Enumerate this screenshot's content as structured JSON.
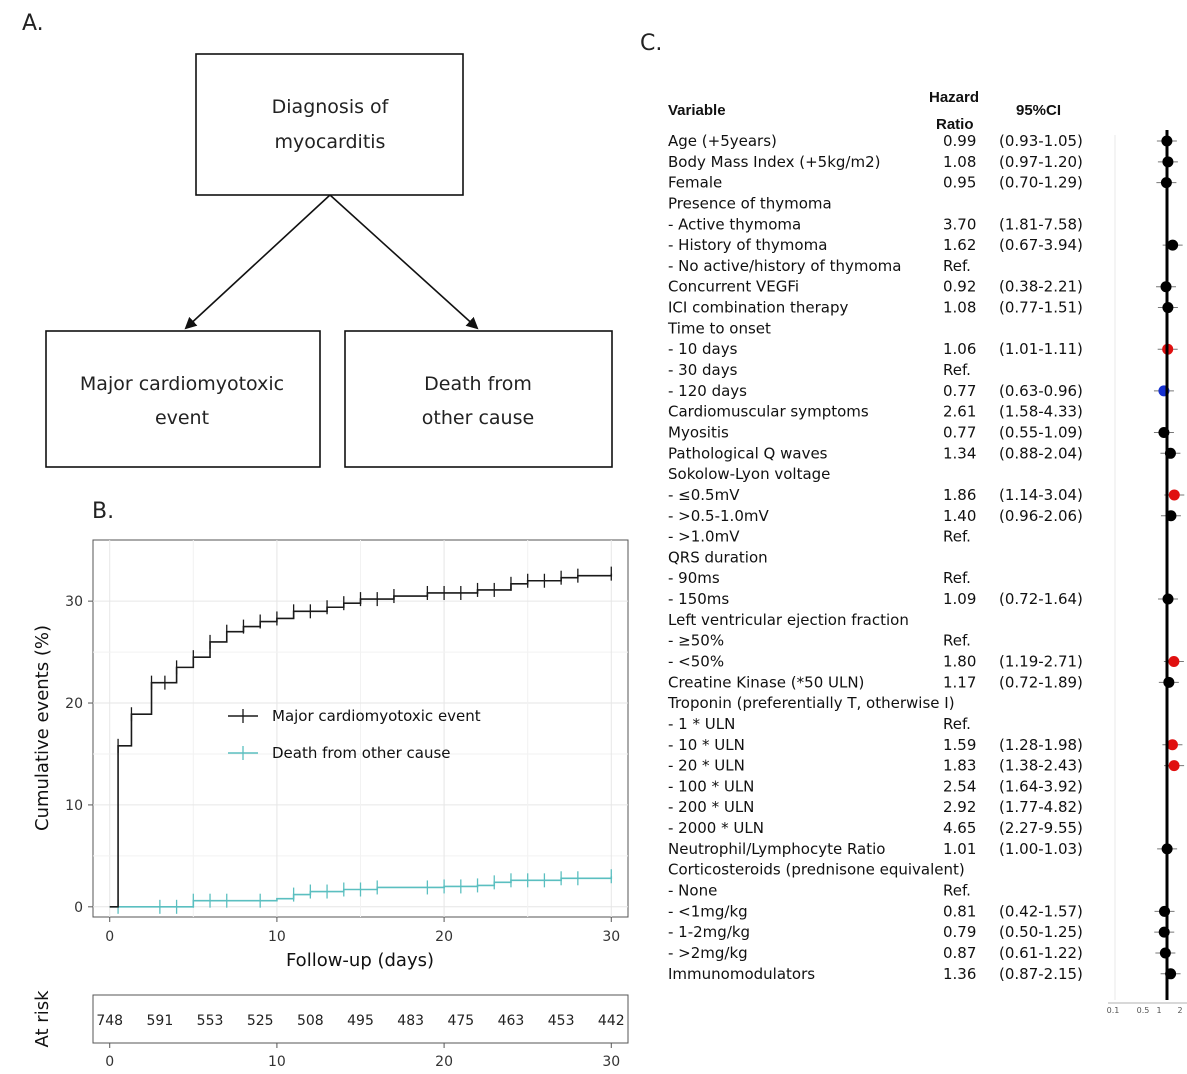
{
  "panels": {
    "a": "A.",
    "b": "B.",
    "c": "C."
  },
  "flowchart": {
    "top_line1": "Diagnosis of",
    "top_line2": "myocarditis",
    "left_line1": "Major cardiomyotoxic",
    "left_line2": "event",
    "right_line1": "Death from",
    "right_line2": "other cause"
  },
  "colors": {
    "major": "#1a1a1a",
    "death": "#5bbfc0",
    "red": "#e01010",
    "blue": "#1530d0",
    "black_dot": "#000000"
  },
  "chart_data": [
    {
      "type": "line",
      "xlabel": "Follow-up (days)",
      "ylabel": "Cumulative events (%)",
      "xlim": [
        -1,
        31
      ],
      "ylim": [
        -1,
        36
      ],
      "x_ticks": [
        0,
        10,
        20,
        30
      ],
      "y_ticks": [
        0,
        10,
        20,
        30
      ],
      "grid": true,
      "legend_position": "center-right",
      "series": [
        {
          "name": "Major cardiomyotoxic event",
          "color": "#1a1a1a",
          "steps": [
            [
              0.5,
              0
            ],
            [
              0.5,
              15.8
            ],
            [
              1.3,
              18.9
            ],
            [
              2.5,
              22.0
            ],
            [
              4,
              23.5
            ],
            [
              5,
              24.5
            ],
            [
              6,
              26.0
            ],
            [
              7,
              27.0
            ],
            [
              8,
              27.5
            ],
            [
              9,
              28.0
            ],
            [
              10,
              28.3
            ],
            [
              11,
              29.0
            ],
            [
              13,
              29.4
            ],
            [
              14,
              29.8
            ],
            [
              15,
              30.2
            ],
            [
              17,
              30.5
            ],
            [
              19,
              30.8
            ],
            [
              22,
              31.1
            ],
            [
              24,
              31.7
            ],
            [
              25,
              32.0
            ],
            [
              27,
              32.3
            ],
            [
              28,
              32.5
            ],
            [
              30,
              32.7
            ]
          ],
          "censor_x": [
            0.5,
            1.3,
            2.5,
            3.3,
            4,
            5,
            6,
            7,
            8,
            9,
            10,
            11,
            12,
            13,
            14,
            15,
            16,
            17,
            19,
            20,
            21,
            22,
            23,
            24,
            25,
            26,
            27,
            28,
            30
          ]
        },
        {
          "name": "Death from other cause",
          "color": "#5bbfc0",
          "steps": [
            [
              0.5,
              0
            ],
            [
              5,
              0.6
            ],
            [
              10,
              0.8
            ],
            [
              11,
              1.2
            ],
            [
              12,
              1.5
            ],
            [
              14,
              1.7
            ],
            [
              16,
              1.9
            ],
            [
              20,
              2.0
            ],
            [
              22,
              2.1
            ],
            [
              23,
              2.4
            ],
            [
              24,
              2.6
            ],
            [
              27,
              2.8
            ],
            [
              30,
              3.0
            ]
          ],
          "censor_x": [
            0.5,
            3,
            4,
            5,
            6,
            7,
            9,
            11,
            12,
            13,
            14,
            15,
            16,
            19,
            20,
            21,
            22,
            23,
            24,
            25,
            26,
            27,
            28,
            30
          ]
        }
      ]
    },
    {
      "type": "table",
      "row_label": "At risk",
      "x": [
        0,
        3,
        6,
        9,
        12,
        15,
        18,
        21,
        24,
        27,
        30
      ],
      "values": [
        "748",
        "591",
        "553",
        "525",
        "508",
        "495",
        "483",
        "475",
        "463",
        "453",
        "442"
      ],
      "x_ticks": [
        0,
        10,
        20,
        30
      ]
    },
    {
      "type": "scatter",
      "headers": {
        "variable": "Variable",
        "hr_line1": "Hazard",
        "hr_line2": "Ratio",
        "ci": "95%CI"
      },
      "x_ticks": [
        "0.1",
        "0.5",
        "1",
        "2"
      ],
      "rows": [
        {
          "label": "Age (+5years)",
          "hr": "0.99",
          "ci": "(0.93-1.05)",
          "v": 0.99,
          "c": "black"
        },
        {
          "label": "Body Mass Index (+5kg/m2)",
          "hr": "1.08",
          "ci": "(0.97-1.20)",
          "v": 1.08,
          "c": "black"
        },
        {
          "label": "Female",
          "hr": "0.95",
          "ci": "(0.70-1.29)",
          "v": 0.95,
          "c": "black"
        },
        {
          "label": "Presence of thymoma",
          "hr": "",
          "ci": ""
        },
        {
          "label": "- Active thymoma",
          "hr": "3.70",
          "ci": "(1.81-7.58)"
        },
        {
          "label": "- History of thymoma",
          "hr": "1.62",
          "ci": "(0.67-3.94)",
          "v": 1.62,
          "c": "black"
        },
        {
          "label": "- No active/history of thymoma",
          "hr": "Ref.",
          "ci": ""
        },
        {
          "label": "Concurrent VEGFi",
          "hr": "0.92",
          "ci": "(0.38-2.21)",
          "v": 0.92,
          "c": "black"
        },
        {
          "label": "ICI combination therapy",
          "hr": "1.08",
          "ci": "(0.77-1.51)",
          "v": 1.08,
          "c": "black"
        },
        {
          "label": "Time to onset",
          "hr": "",
          "ci": ""
        },
        {
          "label": "- 10 days",
          "hr": "1.06",
          "ci": "(1.01-1.11)",
          "v": 1.06,
          "c": "red"
        },
        {
          "label": "- 30 days",
          "hr": "Ref.",
          "ci": ""
        },
        {
          "label": "- 120 days",
          "hr": "0.77",
          "ci": "(0.63-0.96)",
          "v": 0.77,
          "c": "blue"
        },
        {
          "label": "Cardiomuscular symptoms",
          "hr": "2.61",
          "ci": "(1.58-4.33)"
        },
        {
          "label": "Myositis",
          "hr": "0.77",
          "ci": "(0.55-1.09)",
          "v": 0.77,
          "c": "black"
        },
        {
          "label": "Pathological Q waves",
          "hr": "1.34",
          "ci": "(0.88-2.04)",
          "v": 1.34,
          "c": "black"
        },
        {
          "label": "Sokolow-Lyon voltage",
          "hr": "",
          "ci": ""
        },
        {
          "label": "- ≤0.5mV",
          "hr": "1.86",
          "ci": "(1.14-3.04)",
          "v": 1.86,
          "c": "red"
        },
        {
          "label": "- >0.5-1.0mV",
          "hr": "1.40",
          "ci": "(0.96-2.06)",
          "v": 1.4,
          "c": "black"
        },
        {
          "label": "- >1.0mV",
          "hr": "Ref.",
          "ci": ""
        },
        {
          "label": "QRS duration",
          "hr": "",
          "ci": ""
        },
        {
          "label": "- 90ms",
          "hr": "Ref.",
          "ci": ""
        },
        {
          "label": "- 150ms",
          "hr": "1.09",
          "ci": "(0.72-1.64)",
          "v": 1.09,
          "c": "black"
        },
        {
          "label": "Left ventricular ejection fraction",
          "hr": "",
          "ci": ""
        },
        {
          "label": "- ≥50%",
          "hr": "Ref.",
          "ci": ""
        },
        {
          "label": "- <50%",
          "hr": "1.80",
          "ci": "(1.19-2.71)",
          "v": 1.8,
          "c": "red"
        },
        {
          "label": "Creatine Kinase (*50 ULN)",
          "hr": "1.17",
          "ci": "(0.72-1.89)",
          "v": 1.17,
          "c": "black"
        },
        {
          "label": "Troponin (preferentially T, otherwise I)",
          "hr": "",
          "ci": ""
        },
        {
          "label": "- 1 * ULN",
          "hr": "Ref.",
          "ci": ""
        },
        {
          "label": "- 10 * ULN",
          "hr": "1.59",
          "ci": "(1.28-1.98)",
          "v": 1.59,
          "c": "red"
        },
        {
          "label": "- 20 * ULN",
          "hr": "1.83",
          "ci": "(1.38-2.43)",
          "v": 1.83,
          "c": "red"
        },
        {
          "label": "- 100 * ULN",
          "hr": "2.54",
          "ci": "(1.64-3.92)"
        },
        {
          "label": "- 200 * ULN",
          "hr": "2.92",
          "ci": "(1.77-4.82)"
        },
        {
          "label": "- 2000 * ULN",
          "hr": "4.65",
          "ci": "(2.27-9.55)"
        },
        {
          "label": "Neutrophil/Lymphocyte Ratio",
          "hr": "1.01",
          "ci": "(1.00-1.03)",
          "v": 1.01,
          "c": "black"
        },
        {
          "label": "Corticosteroids (prednisone equivalent)",
          "hr": "",
          "ci": ""
        },
        {
          "label": "- None",
          "hr": "Ref.",
          "ci": ""
        },
        {
          "label": "- <1mg/kg",
          "hr": "0.81",
          "ci": "(0.42-1.57)",
          "v": 0.81,
          "c": "black"
        },
        {
          "label": "- 1-2mg/kg",
          "hr": "0.79",
          "ci": "(0.50-1.25)",
          "v": 0.79,
          "c": "black"
        },
        {
          "label": "- >2mg/kg",
          "hr": "0.87",
          "ci": "(0.61-1.22)",
          "v": 0.87,
          "c": "black"
        },
        {
          "label": "Immunomodulators",
          "hr": "1.36",
          "ci": "(0.87-2.15)",
          "v": 1.36,
          "c": "black"
        }
      ]
    }
  ]
}
